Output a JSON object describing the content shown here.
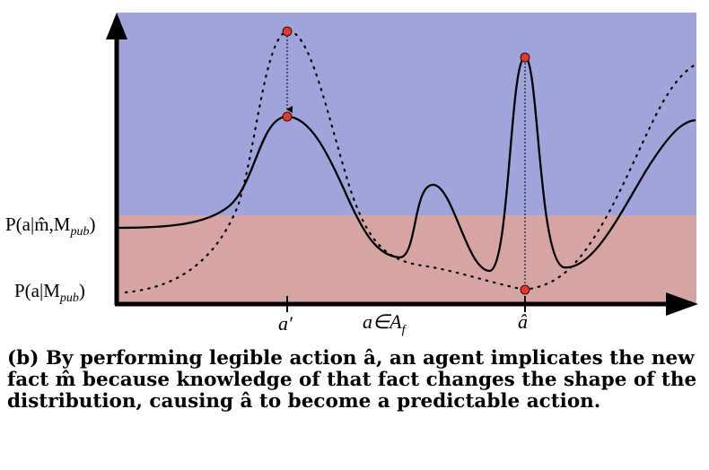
{
  "figure": {
    "regions": {
      "upper_color": "#a1a4da",
      "lower_color": "#d5a4a3"
    },
    "y_labels": {
      "conditioned": "P(a|m̂,M",
      "conditioned_sub": "pub",
      "conditioned_close": ")",
      "prior": "P(a|M",
      "prior_sub": "pub",
      "prior_close": ")"
    },
    "x_labels": {
      "a_prime": "a′",
      "a_in_af": "a∈A",
      "a_in_af_sub": "f",
      "a_hat": "â"
    },
    "marker_color": "#e5372a"
  },
  "caption": "(b) By performing legible action â, an agent implicates the new fact m̂ because knowledge of that fact changes the shape of the distribution, causing â to become a predictable action."
}
